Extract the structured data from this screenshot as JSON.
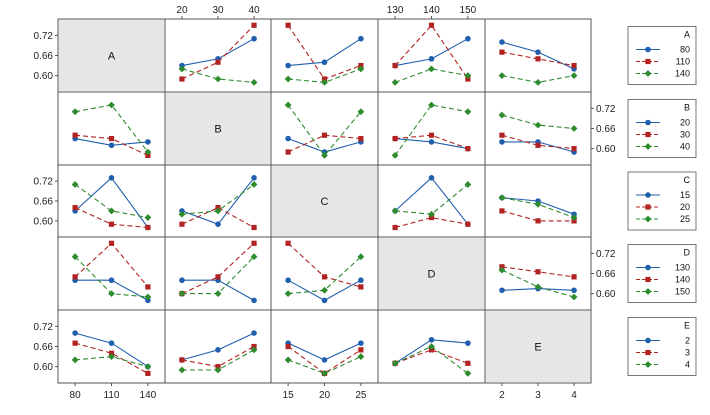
{
  "chart_data": {
    "type": "line",
    "title": "",
    "factors": [
      {
        "name": "A",
        "levels": [
          "80",
          "110",
          "140"
        ],
        "ylim": [
          0.56,
          0.76
        ],
        "yticks": [
          "0.72",
          "0.66",
          "0.60"
        ]
      },
      {
        "name": "B",
        "levels": [
          "20",
          "30",
          "40"
        ],
        "ylim": [
          0.56,
          0.76
        ],
        "yticks": [
          "0.72",
          "0.66",
          "0.60"
        ]
      },
      {
        "name": "C",
        "levels": [
          "15",
          "20",
          "25"
        ],
        "ylim": [
          0.56,
          0.76
        ],
        "yticks": [
          "0.72",
          "0.66",
          "0.60"
        ]
      },
      {
        "name": "D",
        "levels": [
          "130",
          "140",
          "150"
        ],
        "ylim": [
          0.56,
          0.76
        ],
        "yticks": [
          "0.72",
          "0.66",
          "0.60"
        ]
      },
      {
        "name": "E",
        "levels": [
          "2",
          "3",
          "4"
        ],
        "ylim": [
          0.56,
          0.76
        ],
        "yticks": [
          "0.72",
          "0.66",
          "0.60"
        ]
      }
    ],
    "series_styles": [
      {
        "color": "#1f5fad",
        "marker": "circle",
        "dash": "solid"
      },
      {
        "color": "#b22222",
        "marker": "square",
        "dash": "dashed"
      },
      {
        "color": "#2e8b2e",
        "marker": "diamond",
        "dash": "dashed"
      }
    ],
    "panels": [
      {
        "row": 0,
        "col": 1,
        "values": [
          [
            0.63,
            0.65,
            0.71
          ],
          [
            0.59,
            0.64,
            0.75
          ],
          [
            0.62,
            0.59,
            0.58
          ]
        ]
      },
      {
        "row": 0,
        "col": 2,
        "values": [
          [
            0.63,
            0.64,
            0.71
          ],
          [
            0.75,
            0.59,
            0.63
          ],
          [
            0.59,
            0.58,
            0.62
          ]
        ]
      },
      {
        "row": 0,
        "col": 3,
        "values": [
          [
            0.63,
            0.65,
            0.71
          ],
          [
            0.63,
            0.75,
            0.59
          ],
          [
            0.58,
            0.62,
            0.6
          ]
        ]
      },
      {
        "row": 0,
        "col": 4,
        "values": [
          [
            0.7,
            0.67,
            0.62
          ],
          [
            0.67,
            0.65,
            0.63
          ],
          [
            0.6,
            0.58,
            0.6
          ]
        ]
      },
      {
        "row": 1,
        "col": 0,
        "values": [
          [
            0.63,
            0.61,
            0.62
          ],
          [
            0.64,
            0.63,
            0.58
          ],
          [
            0.71,
            0.73,
            0.59
          ]
        ]
      },
      {
        "row": 1,
        "col": 2,
        "values": [
          [
            0.63,
            0.59,
            0.62
          ],
          [
            0.59,
            0.64,
            0.63
          ],
          [
            0.73,
            0.58,
            0.71
          ]
        ]
      },
      {
        "row": 1,
        "col": 3,
        "values": [
          [
            0.63,
            0.62,
            0.6
          ],
          [
            0.63,
            0.64,
            0.6
          ],
          [
            0.58,
            0.73,
            0.71
          ]
        ]
      },
      {
        "row": 1,
        "col": 4,
        "values": [
          [
            0.62,
            0.62,
            0.59
          ],
          [
            0.64,
            0.61,
            0.6
          ],
          [
            0.7,
            0.67,
            0.66
          ]
        ]
      },
      {
        "row": 2,
        "col": 0,
        "values": [
          [
            0.63,
            0.73,
            0.58
          ],
          [
            0.64,
            0.59,
            0.58
          ],
          [
            0.71,
            0.63,
            0.61
          ]
        ]
      },
      {
        "row": 2,
        "col": 1,
        "values": [
          [
            0.63,
            0.59,
            0.73
          ],
          [
            0.59,
            0.64,
            0.58
          ],
          [
            0.62,
            0.63,
            0.71
          ]
        ]
      },
      {
        "row": 2,
        "col": 3,
        "values": [
          [
            0.63,
            0.73,
            0.59
          ],
          [
            0.58,
            0.61,
            0.59
          ],
          [
            0.63,
            0.62,
            0.71
          ]
        ]
      },
      {
        "row": 2,
        "col": 4,
        "values": [
          [
            0.67,
            0.66,
            0.62
          ],
          [
            0.63,
            0.6,
            0.6
          ],
          [
            0.67,
            0.65,
            0.61
          ]
        ]
      },
      {
        "row": 3,
        "col": 0,
        "values": [
          [
            0.64,
            0.64,
            0.58
          ],
          [
            0.65,
            0.75,
            0.62
          ],
          [
            0.71,
            0.6,
            0.59
          ]
        ]
      },
      {
        "row": 3,
        "col": 1,
        "values": [
          [
            0.64,
            0.64,
            0.58
          ],
          [
            0.6,
            0.65,
            0.75
          ],
          [
            0.6,
            0.6,
            0.71
          ]
        ]
      },
      {
        "row": 3,
        "col": 2,
        "values": [
          [
            0.64,
            0.58,
            0.64
          ],
          [
            0.75,
            0.65,
            0.62
          ],
          [
            0.6,
            0.61,
            0.71
          ]
        ]
      },
      {
        "row": 3,
        "col": 4,
        "values": [
          [
            0.61,
            0.615,
            0.61
          ],
          [
            0.68,
            0.665,
            0.65
          ],
          [
            0.67,
            0.62,
            0.59
          ]
        ]
      },
      {
        "row": 4,
        "col": 0,
        "values": [
          [
            0.7,
            0.67,
            0.6
          ],
          [
            0.67,
            0.64,
            0.58
          ],
          [
            0.62,
            0.63,
            0.6
          ]
        ]
      },
      {
        "row": 4,
        "col": 1,
        "values": [
          [
            0.62,
            0.65,
            0.7
          ],
          [
            0.62,
            0.6,
            0.66
          ],
          [
            0.59,
            0.59,
            0.65
          ]
        ]
      },
      {
        "row": 4,
        "col": 2,
        "values": [
          [
            0.67,
            0.62,
            0.67
          ],
          [
            0.66,
            0.58,
            0.65
          ],
          [
            0.62,
            0.58,
            0.63
          ]
        ]
      },
      {
        "row": 4,
        "col": 3,
        "values": [
          [
            0.61,
            0.68,
            0.67
          ],
          [
            0.61,
            0.65,
            0.61
          ],
          [
            0.61,
            0.66,
            0.58
          ]
        ]
      }
    ],
    "legends": [
      {
        "row": 0,
        "title": "A",
        "labels": [
          "80",
          "110",
          "140"
        ]
      },
      {
        "row": 1,
        "title": "B",
        "labels": [
          "20",
          "30",
          "40"
        ]
      },
      {
        "row": 2,
        "title": "C",
        "labels": [
          "15",
          "20",
          "25"
        ]
      },
      {
        "row": 3,
        "title": "D",
        "labels": [
          "130",
          "140",
          "150"
        ]
      },
      {
        "row": 4,
        "title": "E",
        "labels": [
          "2",
          "3",
          "4"
        ]
      }
    ],
    "xaxis_top_cols": [
      1,
      3
    ],
    "xaxis_bottom_cols": [
      0,
      2,
      4
    ],
    "yaxis_left_rows": [
      0,
      2,
      4
    ],
    "yaxis_right_rows": [
      1,
      3
    ],
    "grid": false,
    "legend_position": "right"
  }
}
